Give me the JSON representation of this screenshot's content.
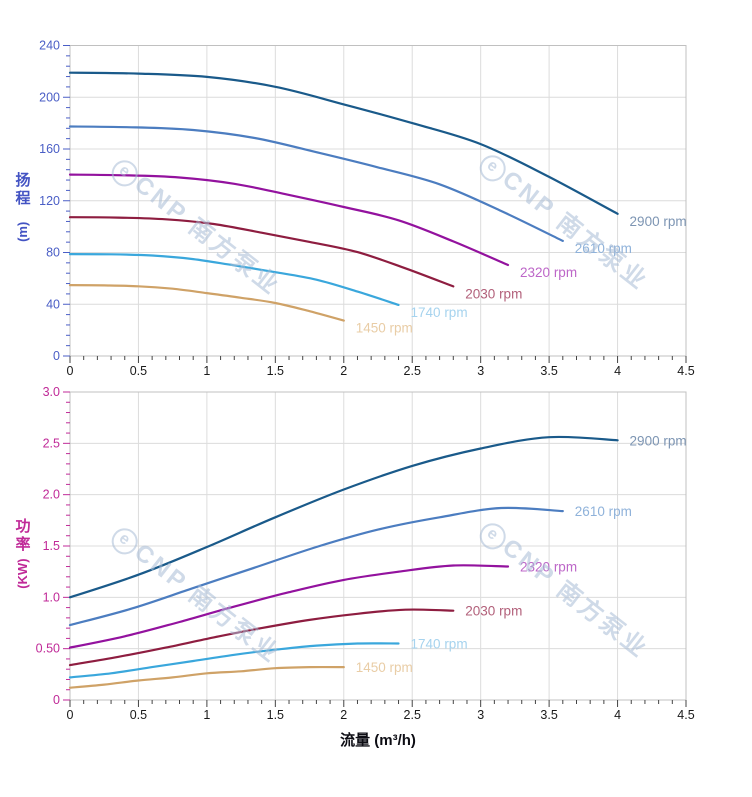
{
  "watermark": {
    "logo_letter": "e",
    "text": "CNP 南方泵业"
  },
  "x_axis": {
    "label": "流量 (m³/h)",
    "lim": [
      0,
      4.5
    ],
    "ticks": [
      0,
      0.5,
      1,
      1.5,
      2,
      2.5,
      3,
      3.5,
      4,
      4.5
    ],
    "tick_labels": [
      "0",
      "0.5",
      "1",
      "1.5",
      "2",
      "2.5",
      "3",
      "3.5",
      "4",
      "4.5"
    ],
    "minor_step": 0.1,
    "tick_color": "#444444",
    "label_color": "#1a1a1a"
  },
  "chart_data": [
    {
      "type": "line",
      "ylabel_cjk": "扬程",
      "ylabel_unit": "(m)",
      "ylim": [
        0,
        240
      ],
      "y_ticks": [
        0,
        40,
        80,
        120,
        160,
        200,
        240
      ],
      "y_tick_labels": [
        "0",
        "40",
        "80",
        "120",
        "160",
        "200",
        "240"
      ],
      "y_minor_step": 8,
      "axis_color": "#4a5ec6",
      "series": [
        {
          "name": "2900 rpm",
          "color": "#1a5a8a",
          "label_color": "#7d95b3",
          "x": [
            0,
            0.5,
            1,
            1.5,
            2,
            2.5,
            3,
            3.5,
            4
          ],
          "y": [
            219,
            218.3,
            215.7,
            208.1,
            194.5,
            180.0,
            163.8,
            138.4,
            109.9
          ]
        },
        {
          "name": "2610 rpm",
          "color": "#4c7dc0",
          "label_color": "#8fb2da",
          "x": [
            0,
            0.45,
            0.9,
            1.35,
            1.8,
            2.25,
            2.7,
            3.15,
            3.6
          ],
          "y": [
            177.4,
            176.8,
            174.7,
            168.5,
            157.5,
            145.8,
            132.7,
            112.1,
            89.0
          ]
        },
        {
          "name": "2320 rpm",
          "color": "#93129e",
          "label_color": "#bd67c8",
          "x": [
            0,
            0.4,
            0.8,
            1.2,
            1.6,
            2,
            2.4,
            2.8,
            3.2
          ],
          "y": [
            140.2,
            139.7,
            138.0,
            133.1,
            124.5,
            115.2,
            104.9,
            88.6,
            70.3
          ]
        },
        {
          "name": "2030 rpm",
          "color": "#8e1d40",
          "label_color": "#b2607a",
          "x": [
            0,
            0.35,
            0.7,
            1.05,
            1.4,
            1.75,
            2.1,
            2.45,
            2.8
          ],
          "y": [
            107.3,
            107.0,
            105.7,
            102.0,
            95.3,
            88.2,
            80.3,
            67.8,
            53.8
          ]
        },
        {
          "name": "1740 rpm",
          "color": "#3aa7dc",
          "label_color": "#a6d3ee",
          "x": [
            0,
            0.3,
            0.6,
            0.9,
            1.2,
            1.5,
            1.8,
            2.1,
            2.4
          ],
          "y": [
            78.8,
            78.6,
            77.7,
            74.9,
            70.0,
            64.8,
            59.0,
            49.8,
            39.5
          ]
        },
        {
          "name": "1450 rpm",
          "color": "#cfa267",
          "label_color": "#e9cda6",
          "x": [
            0,
            0.25,
            0.5,
            0.75,
            1,
            1.25,
            1.5,
            1.75,
            2
          ],
          "y": [
            54.8,
            54.6,
            53.9,
            52.0,
            48.6,
            45.0,
            41.0,
            34.6,
            27.4
          ]
        }
      ]
    },
    {
      "type": "line",
      "ylabel_cjk": "功率",
      "ylabel_unit": "(KW)",
      "ylim": [
        0,
        3
      ],
      "y_ticks": [
        0,
        0.5,
        1,
        1.5,
        2,
        2.5,
        3
      ],
      "y_tick_labels": [
        "0",
        "0.50",
        "1.0",
        "1.5",
        "2.0",
        "2.5",
        "3.0"
      ],
      "y_minor_step": 0.1,
      "axis_color": "#c02a98",
      "series": [
        {
          "name": "2900 rpm",
          "color": "#1a5a8a",
          "label_color": "#7d95b3",
          "x": [
            0,
            0.5,
            1,
            1.5,
            2,
            2.5,
            3,
            3.5,
            4
          ],
          "y": [
            1.0,
            1.22,
            1.49,
            1.78,
            2.05,
            2.28,
            2.45,
            2.56,
            2.53
          ]
        },
        {
          "name": "2610 rpm",
          "color": "#4c7dc0",
          "label_color": "#8fb2da",
          "x": [
            0,
            0.45,
            0.9,
            1.35,
            1.8,
            2.25,
            2.7,
            3.15,
            3.6
          ],
          "y": [
            0.73,
            0.89,
            1.09,
            1.29,
            1.49,
            1.66,
            1.78,
            1.87,
            1.84
          ]
        },
        {
          "name": "2320 rpm",
          "color": "#93129e",
          "label_color": "#bd67c8",
          "x": [
            0,
            0.4,
            0.8,
            1.2,
            1.6,
            2,
            2.4,
            2.8,
            3.2
          ],
          "y": [
            0.51,
            0.62,
            0.76,
            0.91,
            1.05,
            1.17,
            1.25,
            1.31,
            1.3
          ]
        },
        {
          "name": "2030 rpm",
          "color": "#8e1d40",
          "label_color": "#b2607a",
          "x": [
            0,
            0.35,
            0.7,
            1.05,
            1.4,
            1.75,
            2.1,
            2.45,
            2.8
          ],
          "y": [
            0.34,
            0.42,
            0.51,
            0.61,
            0.7,
            0.78,
            0.84,
            0.88,
            0.87
          ]
        },
        {
          "name": "1740 rpm",
          "color": "#3aa7dc",
          "label_color": "#a6d3ee",
          "x": [
            0,
            0.3,
            0.6,
            0.9,
            1.2,
            1.5,
            1.8,
            2.1,
            2.4
          ],
          "y": [
            0.22,
            0.26,
            0.32,
            0.38,
            0.44,
            0.49,
            0.53,
            0.55,
            0.55
          ]
        },
        {
          "name": "1450 rpm",
          "color": "#cfa267",
          "label_color": "#e9cda6",
          "x": [
            0,
            0.25,
            0.5,
            0.75,
            1,
            1.25,
            1.5,
            1.75,
            2
          ],
          "y": [
            0.12,
            0.15,
            0.19,
            0.22,
            0.26,
            0.28,
            0.31,
            0.32,
            0.32
          ]
        }
      ]
    }
  ]
}
